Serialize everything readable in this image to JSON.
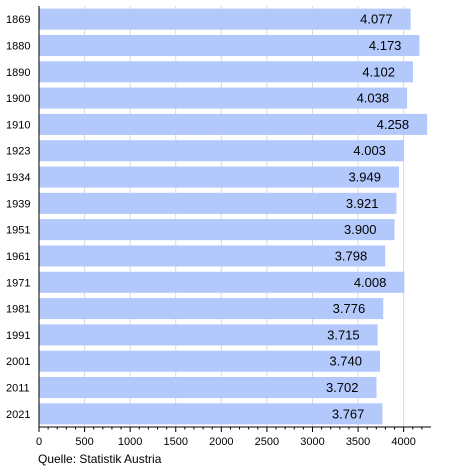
{
  "chart_data": {
    "type": "bar",
    "orientation": "horizontal",
    "categories": [
      "1869",
      "1880",
      "1890",
      "1900",
      "1910",
      "1923",
      "1934",
      "1939",
      "1951",
      "1961",
      "1971",
      "1981",
      "1991",
      "2001",
      "2011",
      "2021"
    ],
    "values": [
      4077,
      4173,
      4102,
      4038,
      4258,
      4003,
      3949,
      3921,
      3900,
      3798,
      4008,
      3776,
      3715,
      3740,
      3702,
      3767
    ],
    "value_labels": [
      "4.077",
      "4.173",
      "4.102",
      "4.038",
      "4.258",
      "4.003",
      "3.949",
      "3.921",
      "3.900",
      "3.798",
      "4.008",
      "3.776",
      "3.715",
      "3.740",
      "3.702",
      "3.767"
    ],
    "xlim": [
      0,
      4300
    ],
    "xticks": [
      0,
      500,
      1000,
      1500,
      2000,
      2500,
      3000,
      3500,
      4000
    ],
    "xtick_labels": [
      "0",
      "500",
      "1000",
      "1500",
      "2000",
      "2500",
      "3000",
      "3500",
      "4000"
    ],
    "grid": "vertical",
    "bar_color": "#b3c8fb",
    "grid_color": "#d9d9d9",
    "title": "",
    "xlabel": "",
    "ylabel": ""
  },
  "source": "Quelle: Statistik Austria"
}
